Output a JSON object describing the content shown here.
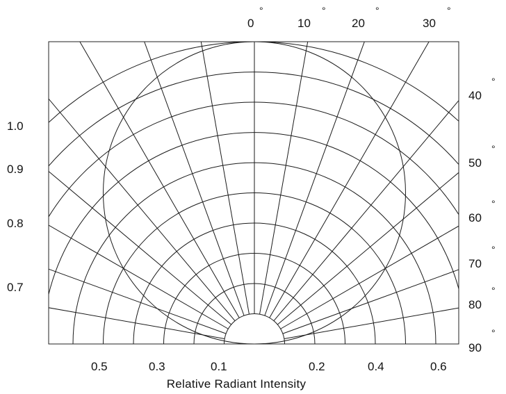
{
  "chart_data": {
    "type": "polar-radiation-pattern",
    "angle_labels_top": [
      "0",
      "10",
      "20",
      "30"
    ],
    "angle_labels_right": [
      "40",
      "50",
      "60",
      "70",
      "80",
      "90"
    ],
    "degree_symbol": "°",
    "left_scale_labels": [
      "1.0",
      "0.9",
      "0.8",
      "0.7"
    ],
    "bottom_tick_labels": [
      "0.5",
      "0.3",
      "0.1",
      "0.2",
      "0.4",
      "0.6"
    ],
    "xlabel": "Relative Radiant Intensity",
    "radial_grid_values": [
      0.1,
      0.2,
      0.3,
      0.4,
      0.5,
      0.6,
      0.7,
      0.8,
      0.9,
      1.0
    ],
    "angle_grid_step_deg": 10,
    "angle_range_deg": [
      -90,
      90
    ],
    "pattern_curve": {
      "shape": "circle through origin",
      "diameter_relative": 1.0
    },
    "grid": true
  }
}
